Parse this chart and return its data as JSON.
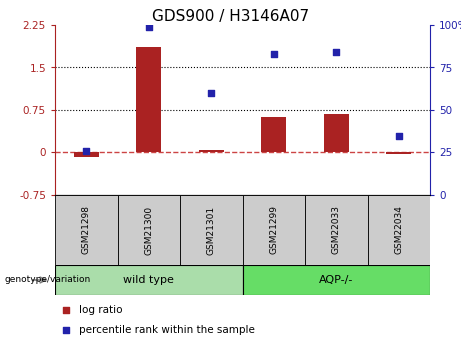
{
  "title": "GDS900 / H3146A07",
  "categories": [
    "GSM21298",
    "GSM21300",
    "GSM21301",
    "GSM21299",
    "GSM22033",
    "GSM22034"
  ],
  "group1_label": "wild type",
  "group2_label": "AQP-/-",
  "group_row_label": "genotype/variation",
  "log_ratio": [
    -0.08,
    1.87,
    0.05,
    0.62,
    0.68,
    -0.02
  ],
  "percentile_rank": [
    26,
    99,
    60,
    83,
    84,
    35
  ],
  "left_ylim": [
    -0.75,
    2.25
  ],
  "right_ylim": [
    0,
    100
  ],
  "left_yticks": [
    -0.75,
    0,
    0.75,
    1.5,
    2.25
  ],
  "right_yticks": [
    0,
    25,
    50,
    75,
    100
  ],
  "left_yticklabels": [
    "-0.75",
    "0",
    "0.75",
    "1.5",
    "2.25"
  ],
  "right_yticklabels": [
    "0",
    "25",
    "50",
    "75",
    "100%"
  ],
  "hlines": [
    0.75,
    1.5
  ],
  "bar_color": "#AA2222",
  "dot_color": "#2222AA",
  "dashed_line_color": "#CC4444",
  "hline_color": "#000000",
  "plot_bg_color": "#FFFFFF",
  "group1_color": "#AADDAA",
  "group2_color": "#66DD66",
  "label_bg_color": "#CCCCCC",
  "bar_width": 0.4,
  "legend_log_ratio": "log ratio",
  "legend_percentile": "percentile rank within the sample",
  "title_fontsize": 11,
  "tick_fontsize": 7.5,
  "legend_fontsize": 7.5,
  "category_fontsize": 6.5,
  "group_fontsize": 8
}
